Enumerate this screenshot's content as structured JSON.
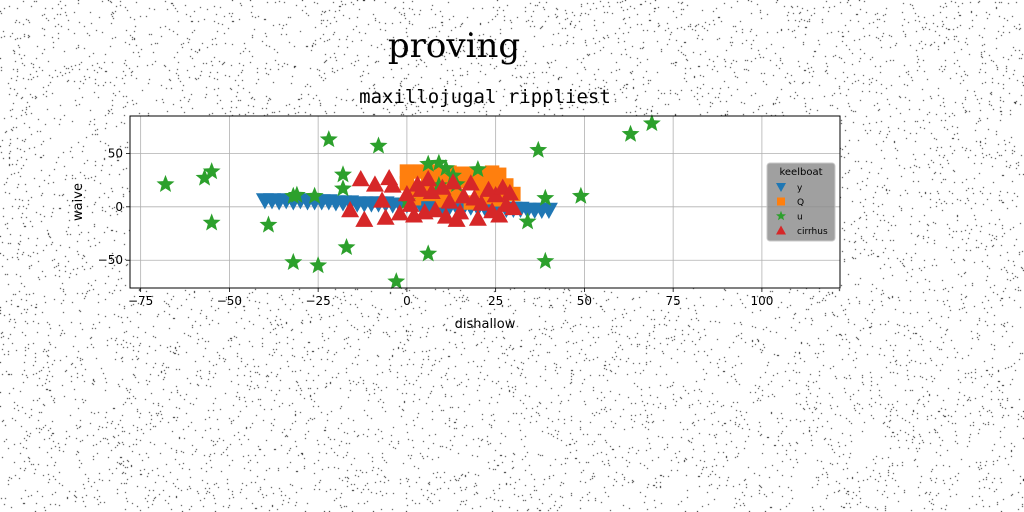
{
  "page_title": "proving",
  "chart_data": {
    "type": "scatter",
    "title": "maxillojugal rippliest",
    "xlabel": "dishallow",
    "ylabel": "waive",
    "xlim": [
      -78,
      122
    ],
    "ylim": [
      -76,
      85
    ],
    "xticks": [
      -75,
      -50,
      -25,
      0,
      25,
      50,
      75,
      100
    ],
    "yticks": [
      -50,
      0,
      50
    ],
    "grid": true,
    "legend": {
      "title": "keelboat",
      "position": "center-right"
    },
    "series": [
      {
        "name": "y",
        "marker": "triangle-down",
        "color": "#1f77b4",
        "points": [
          [
            -40,
            6
          ],
          [
            -38,
            6
          ],
          [
            -36,
            5
          ],
          [
            -34,
            6
          ],
          [
            -32,
            5
          ],
          [
            -30,
            6
          ],
          [
            -28,
            5
          ],
          [
            -26,
            5
          ],
          [
            -24,
            5
          ],
          [
            -22,
            5
          ],
          [
            -20,
            4
          ],
          [
            -18,
            4
          ],
          [
            -16,
            4
          ],
          [
            -14,
            3
          ],
          [
            -12,
            3
          ],
          [
            -10,
            3
          ],
          [
            -8,
            3
          ],
          [
            -6,
            3
          ],
          [
            -4,
            2
          ],
          [
            -2,
            2
          ],
          [
            0,
            2
          ],
          [
            2,
            2
          ],
          [
            4,
            1
          ],
          [
            6,
            1
          ],
          [
            8,
            1
          ],
          [
            10,
            1
          ],
          [
            12,
            0
          ],
          [
            14,
            0
          ],
          [
            16,
            0
          ],
          [
            18,
            0
          ],
          [
            20,
            -1
          ],
          [
            22,
            -1
          ],
          [
            24,
            -1
          ],
          [
            26,
            -1
          ],
          [
            28,
            -2
          ],
          [
            30,
            -2
          ],
          [
            32,
            -2
          ],
          [
            34,
            -3
          ],
          [
            36,
            -3
          ],
          [
            38,
            -3
          ],
          [
            40,
            -3
          ]
        ]
      },
      {
        "name": "Q",
        "marker": "square",
        "color": "#ff7f0e",
        "points": [
          [
            0,
            33
          ],
          [
            4,
            33
          ],
          [
            8,
            33
          ],
          [
            12,
            32
          ],
          [
            16,
            31
          ],
          [
            20,
            31
          ],
          [
            24,
            32
          ],
          [
            26,
            30
          ],
          [
            0,
            22
          ],
          [
            3,
            17
          ],
          [
            6,
            21
          ],
          [
            9,
            25
          ],
          [
            12,
            20
          ],
          [
            15,
            24
          ],
          [
            18,
            26
          ],
          [
            21,
            18
          ],
          [
            24,
            22
          ],
          [
            27,
            14
          ],
          [
            28,
            20
          ],
          [
            2,
            8
          ],
          [
            6,
            12
          ],
          [
            10,
            6
          ],
          [
            14,
            10
          ],
          [
            18,
            4
          ],
          [
            22,
            9
          ],
          [
            26,
            7
          ],
          [
            30,
            12
          ]
        ]
      },
      {
        "name": "u",
        "marker": "star",
        "color": "#2ca02c",
        "points": [
          [
            69,
            78
          ],
          [
            63,
            68
          ],
          [
            -22,
            63
          ],
          [
            -8,
            57
          ],
          [
            37,
            53
          ],
          [
            -57,
            27
          ],
          [
            -55,
            33
          ],
          [
            -68,
            21
          ],
          [
            -18,
            30
          ],
          [
            -18,
            17
          ],
          [
            -32,
            10
          ],
          [
            -31,
            11
          ],
          [
            -26,
            10
          ],
          [
            6,
            40
          ],
          [
            9,
            41
          ],
          [
            11,
            36
          ],
          [
            13,
            29
          ],
          [
            20,
            35
          ],
          [
            14,
            21
          ],
          [
            9,
            20
          ],
          [
            49,
            10
          ],
          [
            39,
            8
          ],
          [
            0,
            5
          ],
          [
            -55,
            -15
          ],
          [
            -39,
            -17
          ],
          [
            34,
            -14
          ],
          [
            -17,
            -38
          ],
          [
            6,
            -44
          ],
          [
            -32,
            -52
          ],
          [
            -25,
            -55
          ],
          [
            39,
            -51
          ],
          [
            -3,
            -70
          ]
        ]
      },
      {
        "name": "cirrhus",
        "marker": "triangle-up",
        "color": "#d62728",
        "points": [
          [
            -16,
            -3
          ],
          [
            -13,
            26
          ],
          [
            -12,
            -12
          ],
          [
            -9,
            21
          ],
          [
            -7,
            6
          ],
          [
            -5,
            27
          ],
          [
            -4,
            20
          ],
          [
            -2,
            -6
          ],
          [
            0,
            12
          ],
          [
            2,
            -8
          ],
          [
            3,
            21
          ],
          [
            5,
            -5
          ],
          [
            6,
            26
          ],
          [
            7,
            14
          ],
          [
            8,
            -3
          ],
          [
            10,
            18
          ],
          [
            11,
            -9
          ],
          [
            12,
            5
          ],
          [
            13,
            23
          ],
          [
            15,
            -5
          ],
          [
            16,
            10
          ],
          [
            18,
            22
          ],
          [
            20,
            -11
          ],
          [
            21,
            3
          ],
          [
            23,
            16
          ],
          [
            24,
            -4
          ],
          [
            25,
            11
          ],
          [
            26,
            -8
          ],
          [
            27,
            18
          ],
          [
            28,
            2
          ],
          [
            29,
            13
          ],
          [
            30,
            -1
          ],
          [
            -6,
            -10
          ],
          [
            1,
            2
          ],
          [
            4,
            16
          ],
          [
            14,
            -12
          ],
          [
            19,
            8
          ]
        ]
      }
    ]
  }
}
